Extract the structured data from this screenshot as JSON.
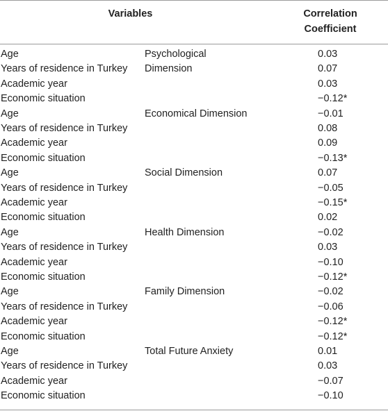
{
  "header": {
    "variables": "Variables",
    "coefficient_line1": "Correlation",
    "coefficient_line2": "Coefficient"
  },
  "groups": [
    {
      "dimension_line1": "Psychological",
      "dimension_line2": "Dimension",
      "rows": [
        {
          "variable": "Age",
          "value": "0.03"
        },
        {
          "variable": "Years of residence in Turkey",
          "value": "0.07"
        },
        {
          "variable": "Academic year",
          "value": "0.03"
        },
        {
          "variable": "Economic situation",
          "value": "−0.12*"
        }
      ]
    },
    {
      "dimension_line1": "Economical Dimension",
      "dimension_line2": "",
      "rows": [
        {
          "variable": "Age",
          "value": "−0.01"
        },
        {
          "variable": "Years of residence in Turkey",
          "value": "0.08"
        },
        {
          "variable": "Academic year",
          "value": "0.09"
        },
        {
          "variable": "Economic situation",
          "value": "−0.13*"
        }
      ]
    },
    {
      "dimension_line1": "Social Dimension",
      "dimension_line2": "",
      "rows": [
        {
          "variable": "Age",
          "value": "0.07"
        },
        {
          "variable": "Years of residence in Turkey",
          "value": "−0.05"
        },
        {
          "variable": "Academic year",
          "value": "−0.15*"
        },
        {
          "variable": "Economic situation",
          "value": "0.02"
        }
      ]
    },
    {
      "dimension_line1": "Health Dimension",
      "dimension_line2": "",
      "rows": [
        {
          "variable": "Age",
          "value": "−0.02"
        },
        {
          "variable": "Years of residence in Turkey",
          "value": "0.03"
        },
        {
          "variable": "Academic year",
          "value": "−0.10"
        },
        {
          "variable": "Economic situation",
          "value": "−0.12*"
        }
      ]
    },
    {
      "dimension_line1": "Family Dimension",
      "dimension_line2": "",
      "rows": [
        {
          "variable": "Age",
          "value": "−0.02"
        },
        {
          "variable": "Years of residence in Turkey",
          "value": "−0.06"
        },
        {
          "variable": "Academic year",
          "value": "−0.12*"
        },
        {
          "variable": "Economic situation",
          "value": "−0.12*"
        }
      ]
    },
    {
      "dimension_line1": "Total Future Anxiety",
      "dimension_line2": "",
      "rows": [
        {
          "variable": "Age",
          "value": "0.01"
        },
        {
          "variable": "Years of residence in Turkey",
          "value": "0.03"
        },
        {
          "variable": "Academic year",
          "value": "−0.07"
        },
        {
          "variable": "Economic situation",
          "value": "−0.10"
        }
      ]
    }
  ]
}
